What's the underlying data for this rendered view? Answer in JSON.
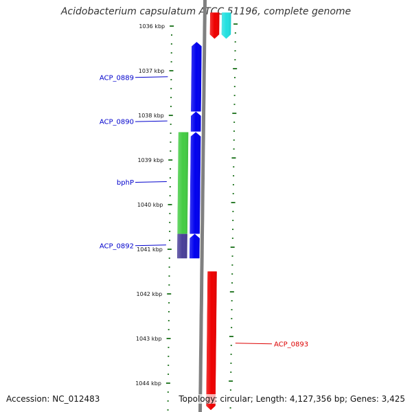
{
  "title": "Acidobacterium capsulatum ATCC 51196, complete genome",
  "accession": "Accession: NC_012483",
  "topology": "Topology: circular; Length: 4,127,356 bp; Genes: 3,425",
  "colors": {
    "backbone": "#808080",
    "tick": "#2e7d2e",
    "label_blue": "#0000cc",
    "label_red": "#dd0000",
    "feature_blue": "#0000ee",
    "feature_green": "#44cc44",
    "feature_slate": "#4a3f99",
    "feature_red": "#ee0000",
    "feature_cyan": "#22e0e0"
  },
  "map": {
    "unit": "kbp",
    "major_ticks": [
      1036,
      1037,
      1038,
      1039,
      1040,
      1041,
      1042,
      1043,
      1044
    ],
    "major_tick_labels": [
      "1036 kbp",
      "1037 kbp",
      "1038 kbp",
      "1039 kbp",
      "1040 kbp",
      "1041 kbp",
      "1042 kbp",
      "1043 kbp",
      "1044 kbp"
    ],
    "features": [
      {
        "track": "inner",
        "strand": "+",
        "start": 1036.36,
        "end": 1037.91,
        "color": "feature_blue"
      },
      {
        "track": "inner",
        "strand": "+",
        "start": 1037.92,
        "end": 1038.36,
        "color": "feature_blue"
      },
      {
        "track": "inner",
        "strand": "+",
        "start": 1038.38,
        "end": 1040.65,
        "color": "feature_blue"
      },
      {
        "track": "inner",
        "strand": "+",
        "start": 1040.66,
        "end": 1041.2,
        "color": "feature_blue"
      },
      {
        "track": "innermost",
        "strand": "none",
        "start": 1038.38,
        "end": 1040.65,
        "color": "feature_green"
      },
      {
        "track": "innermost",
        "strand": "none",
        "start": 1040.66,
        "end": 1041.2,
        "color": "feature_slate"
      },
      {
        "track": "outer",
        "strand": "-",
        "start": 1035.7,
        "end": 1036.28,
        "color": "feature_red"
      },
      {
        "track": "outer",
        "strand": "-",
        "start": 1041.5,
        "end": 1044.6,
        "color": "feature_red"
      },
      {
        "track": "outermost",
        "strand": "-",
        "start": 1035.7,
        "end": 1036.28,
        "color": "feature_cyan"
      }
    ],
    "gene_labels": [
      {
        "text": "ACP_0889",
        "side": "left",
        "kbp": 1037.15,
        "color": "label_blue"
      },
      {
        "text": "ACP_0890",
        "side": "left",
        "kbp": 1038.14,
        "color": "label_blue"
      },
      {
        "text": "bphP",
        "side": "left",
        "kbp": 1039.5,
        "color": "label_blue"
      },
      {
        "text": "ACP_0892",
        "side": "left",
        "kbp": 1040.92,
        "color": "label_blue"
      },
      {
        "text": "ACP_0893",
        "side": "right",
        "kbp": 1043.12,
        "color": "label_red"
      }
    ]
  }
}
